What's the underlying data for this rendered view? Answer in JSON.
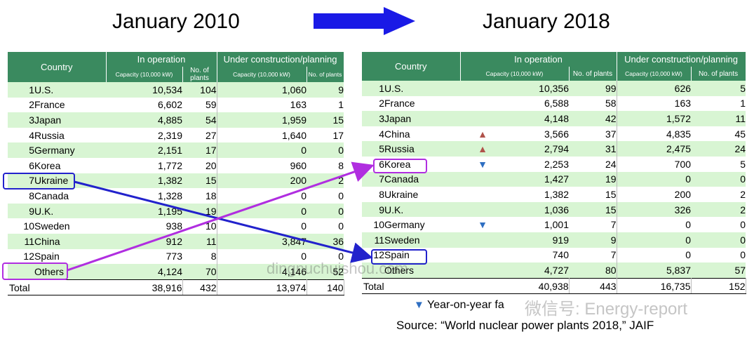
{
  "titles": {
    "left": "January 2010",
    "right": "January 2018"
  },
  "headers": {
    "country": "Country",
    "in_operation": "In operation",
    "under_construction": "Under construction/planning",
    "capacity": "Capacity (10,000 kW)",
    "plants": "No. of plants"
  },
  "table_2010": {
    "rows": [
      {
        "rank": "1",
        "country": "U.S.",
        "op_cap": "10,534",
        "op_plants": "104",
        "uc_cap": "1,060",
        "uc_plants": "9"
      },
      {
        "rank": "2",
        "country": "France",
        "op_cap": "6,602",
        "op_plants": "59",
        "uc_cap": "163",
        "uc_plants": "1"
      },
      {
        "rank": "3",
        "country": "Japan",
        "op_cap": "4,885",
        "op_plants": "54",
        "uc_cap": "1,959",
        "uc_plants": "15"
      },
      {
        "rank": "4",
        "country": "Russia",
        "op_cap": "2,319",
        "op_plants": "27",
        "uc_cap": "1,640",
        "uc_plants": "17"
      },
      {
        "rank": "5",
        "country": "Germany",
        "op_cap": "2,151",
        "op_plants": "17",
        "uc_cap": "0",
        "uc_plants": "0"
      },
      {
        "rank": "6",
        "country": "Korea",
        "op_cap": "1,772",
        "op_plants": "20",
        "uc_cap": "960",
        "uc_plants": "8"
      },
      {
        "rank": "7",
        "country": "Ukraine",
        "op_cap": "1,382",
        "op_plants": "15",
        "uc_cap": "200",
        "uc_plants": "2"
      },
      {
        "rank": "8",
        "country": "Canada",
        "op_cap": "1,328",
        "op_plants": "18",
        "uc_cap": "0",
        "uc_plants": "0"
      },
      {
        "rank": "9",
        "country": "U.K.",
        "op_cap": "1,195",
        "op_plants": "19",
        "uc_cap": "0",
        "uc_plants": "0"
      },
      {
        "rank": "10",
        "country": "Sweden",
        "op_cap": "938",
        "op_plants": "10",
        "uc_cap": "0",
        "uc_plants": "0"
      },
      {
        "rank": "11",
        "country": "China",
        "op_cap": "912",
        "op_plants": "11",
        "uc_cap": "3,847",
        "uc_plants": "36"
      },
      {
        "rank": "12",
        "country": "Spain",
        "op_cap": "773",
        "op_plants": "8",
        "uc_cap": "0",
        "uc_plants": "0"
      },
      {
        "rank": "",
        "country": "Others",
        "op_cap": "4,124",
        "op_plants": "70",
        "uc_cap": "4,146",
        "uc_plants": "52"
      }
    ],
    "total": {
      "label": "Total",
      "op_cap": "38,916",
      "op_plants": "432",
      "uc_cap": "13,974",
      "uc_plants": "140"
    }
  },
  "table_2018": {
    "rows": [
      {
        "rank": "1",
        "country": "U.S.",
        "mark": "",
        "op_cap": "10,356",
        "op_plants": "99",
        "uc_cap": "626",
        "uc_plants": "5"
      },
      {
        "rank": "2",
        "country": "France",
        "mark": "",
        "op_cap": "6,588",
        "op_plants": "58",
        "uc_cap": "163",
        "uc_plants": "1"
      },
      {
        "rank": "3",
        "country": "Japan",
        "mark": "",
        "op_cap": "4,148",
        "op_plants": "42",
        "uc_cap": "1,572",
        "uc_plants": "11"
      },
      {
        "rank": "4",
        "country": "China",
        "mark": "up",
        "op_cap": "3,566",
        "op_plants": "37",
        "uc_cap": "4,835",
        "uc_plants": "45"
      },
      {
        "rank": "5",
        "country": "Russia",
        "mark": "up",
        "op_cap": "2,794",
        "op_plants": "31",
        "uc_cap": "2,475",
        "uc_plants": "24"
      },
      {
        "rank": "6",
        "country": "Korea",
        "mark": "down",
        "op_cap": "2,253",
        "op_plants": "24",
        "uc_cap": "700",
        "uc_plants": "5"
      },
      {
        "rank": "7",
        "country": "Canada",
        "mark": "",
        "op_cap": "1,427",
        "op_plants": "19",
        "uc_cap": "0",
        "uc_plants": "0"
      },
      {
        "rank": "8",
        "country": "Ukraine",
        "mark": "",
        "op_cap": "1,382",
        "op_plants": "15",
        "uc_cap": "200",
        "uc_plants": "2"
      },
      {
        "rank": "9",
        "country": "U.K.",
        "mark": "",
        "op_cap": "1,036",
        "op_plants": "15",
        "uc_cap": "326",
        "uc_plants": "2"
      },
      {
        "rank": "10",
        "country": "Germany",
        "mark": "down",
        "op_cap": "1,001",
        "op_plants": "7",
        "uc_cap": "0",
        "uc_plants": "0"
      },
      {
        "rank": "11",
        "country": "Sweden",
        "mark": "",
        "op_cap": "919",
        "op_plants": "9",
        "uc_cap": "0",
        "uc_plants": "0"
      },
      {
        "rank": "12",
        "country": "Spain",
        "mark": "",
        "op_cap": "740",
        "op_plants": "7",
        "uc_cap": "0",
        "uc_plants": "0"
      },
      {
        "rank": "",
        "country": "Others",
        "mark": "",
        "op_cap": "4,727",
        "op_plants": "80",
        "uc_cap": "5,837",
        "uc_plants": "57"
      }
    ],
    "total": {
      "label": "Total",
      "op_cap": "40,938",
      "op_plants": "443",
      "uc_cap": "16,735",
      "uc_plants": "152"
    }
  },
  "legend": {
    "text": "Year-on-year fa",
    "icon": "down-triangle"
  },
  "source": "Source: “World nuclear power plants 2018,” JAIF",
  "watermarks": {
    "middle": "dingnuchuishou.com",
    "right": "微信号: Energy-report"
  },
  "colors": {
    "header_green": "#3a8a5f",
    "row_green": "#d8f5d3",
    "arrow_blue": "#1a1ae6",
    "highlight_blue": "#2222cc",
    "highlight_purple": "#b02ee0",
    "up_red": "#b0524a",
    "down_blue": "#2f6fc2"
  },
  "icons": {
    "up": "▲",
    "down": "▼"
  }
}
